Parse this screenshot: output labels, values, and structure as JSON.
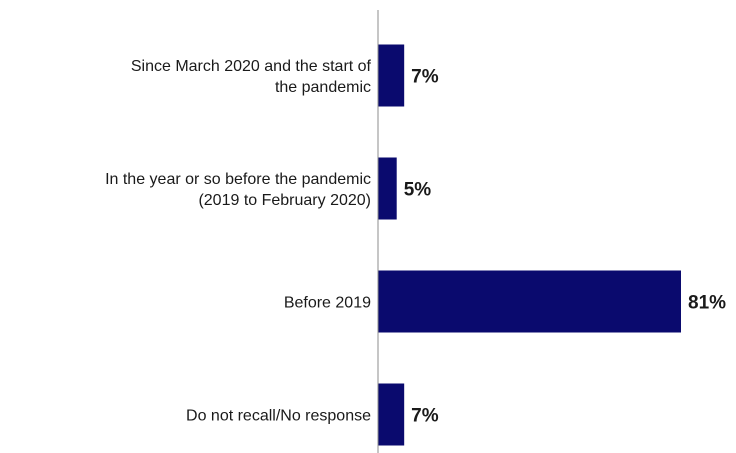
{
  "chart_data": {
    "type": "bar",
    "orientation": "horizontal",
    "categories": [
      [
        "Since March 2020 and the start of",
        "the pandemic"
      ],
      [
        "In the year or so before the pandemic",
        "(2019 to February 2020)"
      ],
      [
        "Before 2019"
      ],
      [
        "Do not recall/No response"
      ]
    ],
    "values": [
      7,
      5,
      81,
      7
    ],
    "value_labels": [
      "7%",
      "5%",
      "81%",
      "7%"
    ],
    "value_suffix": "%",
    "xlim": [
      0,
      85
    ],
    "grid": false,
    "legend": "none",
    "bar_color": "#0a0a6e"
  }
}
